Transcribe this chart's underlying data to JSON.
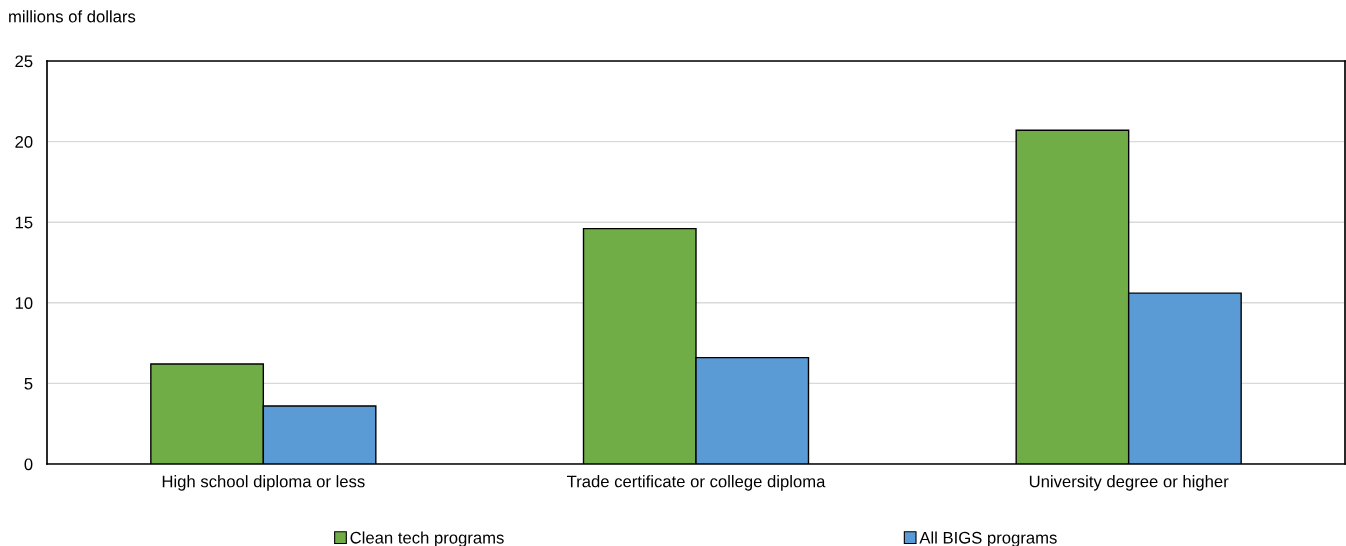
{
  "chart_data": {
    "type": "bar",
    "ylabel": "millions of dollars",
    "categories": [
      "High school diploma or less",
      "Trade certificate or college diploma",
      "University degree or higher"
    ],
    "series": [
      {
        "name": "Clean tech programs",
        "color": "#70ad47",
        "values": [
          6.2,
          14.6,
          20.7
        ]
      },
      {
        "name": "All BIGS programs",
        "color": "#5b9bd5",
        "values": [
          3.6,
          6.6,
          10.6
        ]
      }
    ],
    "ylim": [
      0,
      25
    ],
    "yticks": [
      0,
      5,
      10,
      15,
      20,
      25
    ],
    "grid": "y",
    "legend": "bottom"
  }
}
